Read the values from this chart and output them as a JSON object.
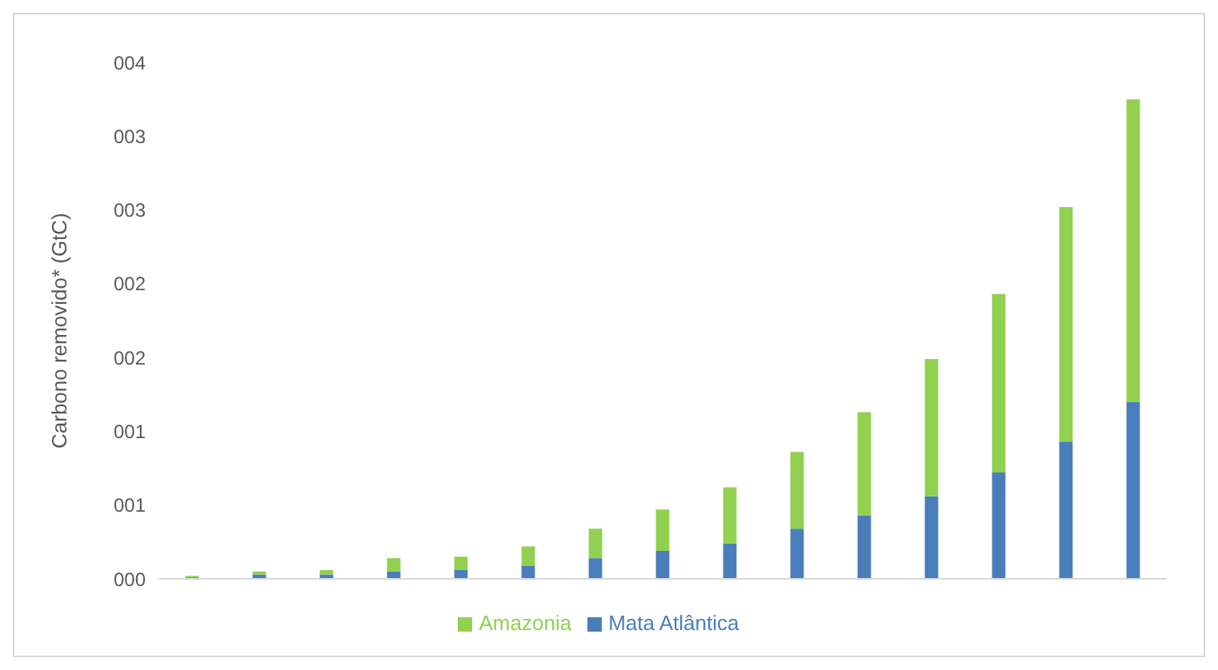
{
  "chart_data": {
    "type": "bar",
    "stacked": true,
    "ylabel": "Carbono removido* (GtC)",
    "categories": [
      null,
      null,
      null,
      null,
      null,
      null,
      null,
      null,
      null,
      null,
      null,
      null,
      null,
      null,
      null
    ],
    "series": [
      {
        "name": "Mata Atlântica",
        "color": "#4a7ebb",
        "values": [
          0.01,
          0.03,
          0.03,
          0.05,
          0.06,
          0.09,
          0.14,
          0.19,
          0.24,
          0.34,
          0.43,
          0.56,
          0.72,
          0.93,
          1.2
        ]
      },
      {
        "name": "Amazonia",
        "color": "#92d050",
        "values": [
          0.01,
          0.02,
          0.03,
          0.09,
          0.09,
          0.13,
          0.2,
          0.28,
          0.38,
          0.52,
          0.7,
          0.93,
          1.21,
          1.59,
          2.05
        ]
      }
    ],
    "ylim": [
      0,
      3.5
    ],
    "yticks": [
      {
        "value": 0,
        "label": "000"
      },
      {
        "value": 0.5,
        "label": "001"
      },
      {
        "value": 1,
        "label": "001"
      },
      {
        "value": 1.5,
        "label": "002"
      },
      {
        "value": 2,
        "label": "002"
      },
      {
        "value": 2.5,
        "label": "003"
      },
      {
        "value": 3,
        "label": "003"
      },
      {
        "value": 3.5,
        "label": "004"
      }
    ],
    "grid": false,
    "legend": "bottom"
  }
}
